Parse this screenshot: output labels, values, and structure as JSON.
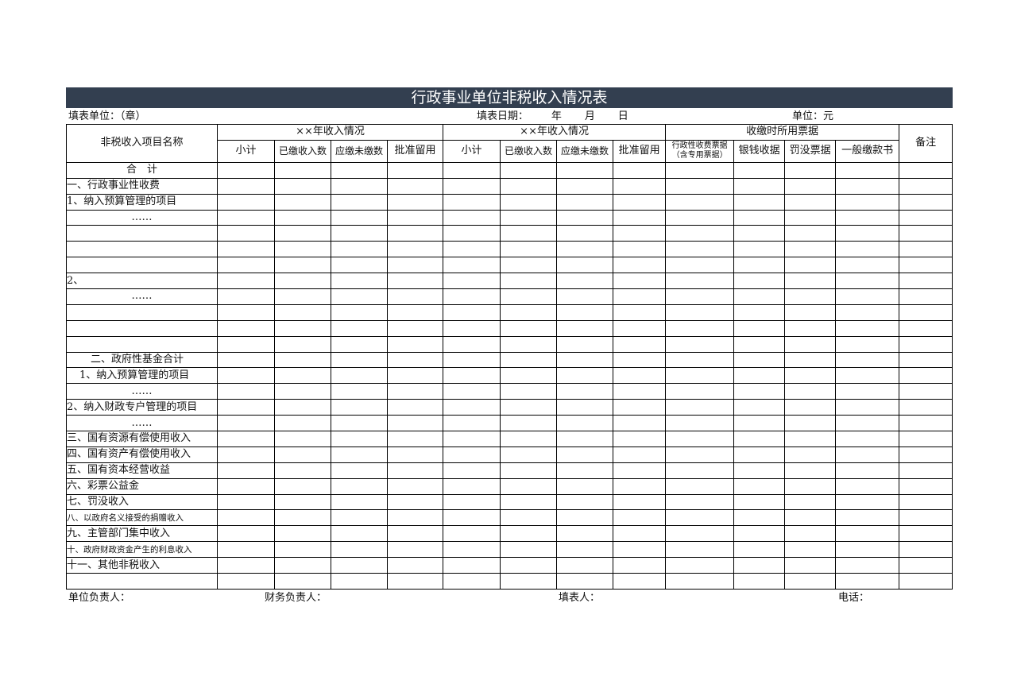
{
  "title": "行政事业单位非税收入情况表",
  "info": {
    "unit": "填表单位：（章）",
    "date": "填表日期：       年       月       日",
    "currency": "单位：元"
  },
  "header": {
    "item_name": "非税收入项目名称",
    "group1": "××年收入情况",
    "group2": "××年收入情况",
    "group3": "收缴时所用票据",
    "remark": "备注",
    "sub": [
      "小计",
      "已缴收入数",
      "应缴未缴数",
      "批准留用",
      "小计",
      "已缴收入数",
      "应缴未缴数",
      "批准留用",
      "行政性收费票据（含专用票据）",
      "银钱收据",
      "罚没票据",
      "一般缴款书"
    ]
  },
  "rows": [
    "合　计",
    "一、行政事业性收费",
    "1、纳入预算管理的项目",
    "……",
    "",
    "",
    "",
    "2、",
    "……",
    "",
    "",
    "",
    "二、政府性基金合计",
    "1、纳入预算管理的项目",
    "……",
    "2、纳入财政专户管理的项目",
    "……",
    "三、国有资源有偿使用收入",
    "四、国有资产有偿使用收入",
    "五、国有资本经营收益",
    "六、彩票公益金",
    "七、罚没收入",
    "八、以政府名义接受的捐赠收入",
    "九、主管部门集中收入",
    "十、政府财政资金产生的利息收入",
    "十一、其他非税收入",
    ""
  ],
  "footer": {
    "head": "单位负责人：",
    "finance": "财务负责人：",
    "filler": "填表人：",
    "phone": "电话："
  }
}
